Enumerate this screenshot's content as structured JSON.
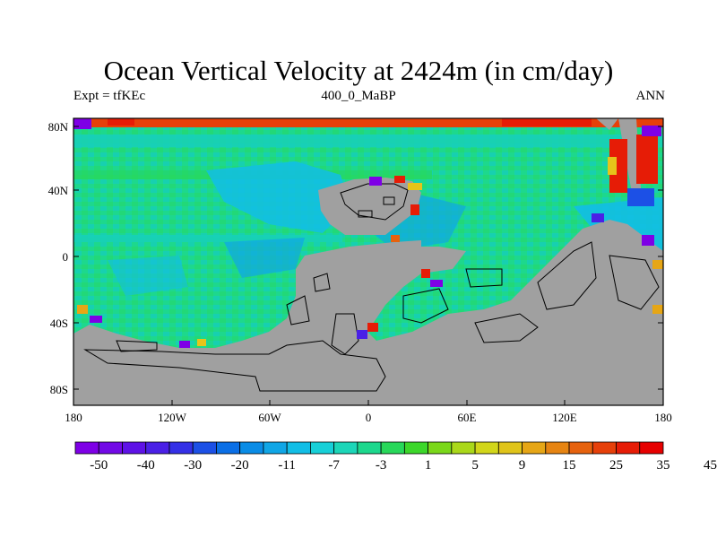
{
  "title": "Ocean Vertical Velocity at 2424m (in cm/day)",
  "subtitle_left": "Expt = tfKEc",
  "subtitle_center": "400_0_MaBP",
  "subtitle_right": "ANN",
  "axes": {
    "y_ticks": [
      "80N",
      "40N",
      "0",
      "40S",
      "80S"
    ],
    "x_ticks": [
      "180",
      "120W",
      "60W",
      "0",
      "60E",
      "120E",
      "180"
    ]
  },
  "colorbar": {
    "labels": [
      "-50",
      "-40",
      "-30",
      "-20",
      "-11",
      "-7",
      "-3",
      "1",
      "5",
      "9",
      "15",
      "25",
      "35",
      "45"
    ],
    "colors": [
      "#7e00e6",
      "#7209e6",
      "#5e12e6",
      "#4a20e6",
      "#3430e6",
      "#1c50e6",
      "#0b6fe6",
      "#0a8ce6",
      "#10a6e6",
      "#12bee6",
      "#17d0d8",
      "#1cd6b8",
      "#1dd88d",
      "#28d85a",
      "#3cd72a",
      "#7ad81a",
      "#aad81a",
      "#d2d61a",
      "#e0c41a",
      "#e6a616",
      "#e68412",
      "#e6620e",
      "#e6400a",
      "#e61c06",
      "#e60000"
    ],
    "land_color": "#a0a0a0"
  }
}
